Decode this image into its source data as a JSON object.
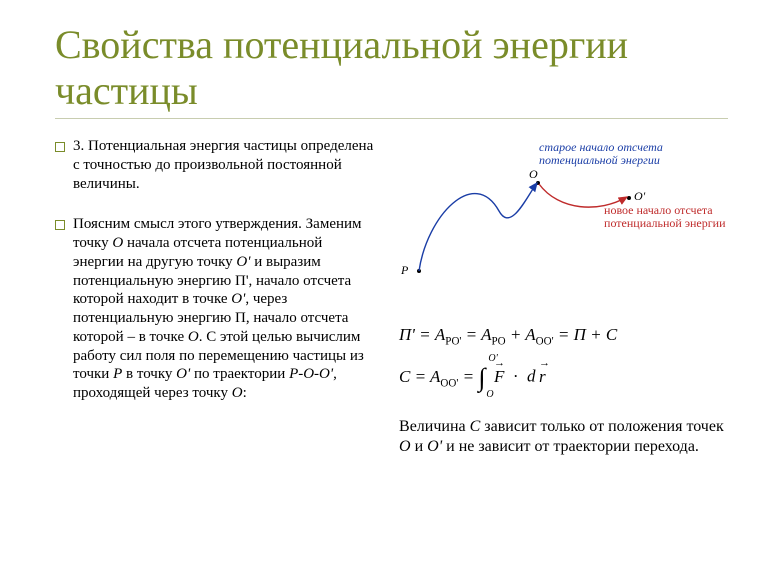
{
  "title": {
    "text": "Свойства потенциальной энергии частицы",
    "color": "#7a8c2a",
    "fontsize_pt": 30
  },
  "underline": {
    "color": "#c8cdb0"
  },
  "bullet_border": "#7a8c2a",
  "left": {
    "para1": "3. Потенциальная энергия частицы определена с точностью до произвольной постоянной величины.",
    "para2_html": "Поясним смысл этого утверждения. Заменим точку <i>O</i> начала отсчета потенциальной энергии на другую точку <i>O'</i> и выразим потенциальную энергию П', начало отсчета которой находит в точке <i>O'</i>, через потенциальную энергию П, начало отсчета которой – в точке <i>O</i>. С этой целью вычислим работу сил поля по перемещению частицы из точки <i>P</i> в точку <i>O'</i> по траектории <i>P-O-O'</i>, проходящей через точку <i>O</i>:",
    "fontsize_pt": 15
  },
  "figure": {
    "label_top": {
      "text": "старое начало отсчета потенциальной энергии",
      "color": "#1a3da6"
    },
    "label_right": {
      "text": "новое начало отсчета потенциальной энергии",
      "color": "#bf2b2b"
    },
    "point_P": "P",
    "point_O": "O",
    "point_Oprime": "O'",
    "curve1_color": "#1a3da6",
    "curve2_color": "#bf2b2b"
  },
  "equations": {
    "line1": "П' = A<sub>PO'</sub> = A<sub>PO</sub> + A<sub>OO'</sub> = П + C",
    "line2_pre": "C = A<sub>OO'</sub> = ",
    "line2_post": "F · d r",
    "fontsize_pt": 17
  },
  "right_text": {
    "html": "Величина <i>C</i> зависит только от положения точек <i>O</i> и <i>O'</i> и не зависит от траектории перехода.",
    "fontsize_pt": 16
  },
  "colors": {
    "text": "#000000",
    "bg": "#ffffff"
  }
}
